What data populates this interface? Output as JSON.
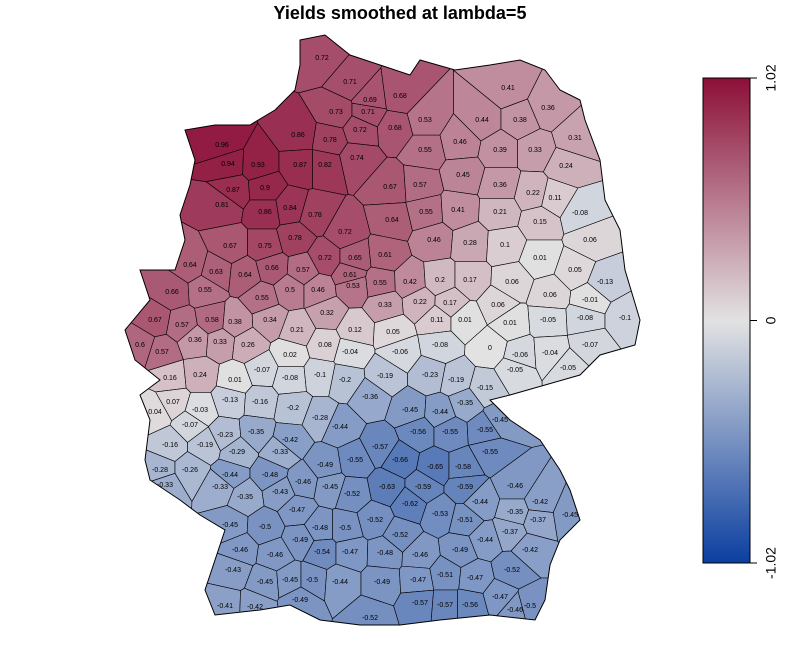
{
  "chart_data": {
    "type": "choropleth",
    "title": "Yields smoothed at lambda=5",
    "colors": {
      "low": "#0b3fa0",
      "mid": "#e2e2e2",
      "high": "#8c0f38"
    },
    "colorbar": {
      "lim": [
        -1.02,
        1.02
      ],
      "ticks": [
        -1.02,
        0,
        1.02
      ]
    },
    "regions": {
      "values": [
        0.72,
        0.71,
        0.69,
        0.68,
        0.73,
        0.71,
        0.68,
        0.72,
        0.96,
        0.94,
        0.93,
        0.87,
        0.82,
        0.86,
        0.78,
        0.74,
        0.67,
        0.57,
        0.55,
        0.53,
        0.46,
        0.44,
        0.38,
        0.41,
        0.36,
        0.31,
        0.33,
        0.39,
        0.24,
        0.45,
        0.36,
        0.22,
        0.11,
        -0.08,
        0.87,
        0.9,
        0.84,
        0.81,
        0.86,
        0.78,
        0.72,
        0.64,
        0.55,
        0.41,
        0.21,
        0.15,
        0.06,
        0.67,
        0.75,
        0.78,
        0.72,
        0.65,
        0.61,
        0.46,
        0.28,
        0.1,
        0.01,
        0.05,
        -0.13,
        0.64,
        0.63,
        0.64,
        0.66,
        0.57,
        0.61,
        0.55,
        0.42,
        0.2,
        0.17,
        0.06,
        0.06,
        -0.01,
        0.66,
        0.55,
        0.55,
        0.5,
        0.46,
        0.53,
        0.33,
        0.22,
        0.17,
        0.06,
        -0.05,
        -0.08,
        -0.1,
        0.67,
        0.57,
        0.58,
        0.38,
        0.34,
        0.21,
        0.32,
        0.12,
        0.05,
        0.11,
        0.01,
        0.01,
        -0.07,
        0.6,
        0.57,
        0.36,
        0.33,
        0.26,
        0.02,
        0.08,
        -0.04,
        -0.06,
        -0.08,
        0,
        -0.06,
        -0.04,
        -0.05,
        0.16,
        0.24,
        0.01,
        -0.07,
        -0.08,
        -0.1,
        -0.2,
        -0.19,
        -0.23,
        -0.19,
        -0.15,
        -0.05,
        0.04,
        0.07,
        -0.03,
        -0.13,
        -0.16,
        -0.2,
        -0.28,
        -0.36,
        -0.45,
        -0.44,
        -0.35,
        -0.45,
        -0.07,
        -0.23,
        -0.35,
        -0.42,
        -0.44,
        -0.57,
        -0.56,
        -0.55,
        -0.55,
        -0.16,
        -0.19,
        -0.29,
        -0.33,
        -0.49,
        -0.55,
        -0.66,
        -0.65,
        -0.58,
        -0.55,
        -0.28,
        -0.26,
        -0.44,
        -0.48,
        -0.46,
        -0.45,
        -0.63,
        -0.59,
        -0.59,
        -0.46,
        -0.33,
        -0.33,
        -0.35,
        -0.43,
        -0.52,
        -0.62,
        -0.53,
        -0.44,
        -0.35,
        -0.42,
        -0.45,
        -0.45,
        -0.5,
        -0.47,
        -0.48,
        -0.5,
        -0.52,
        -0.52,
        -0.51,
        -0.37,
        -0.37,
        -0.46,
        -0.46,
        -0.49,
        -0.54,
        -0.47,
        -0.48,
        -0.46,
        -0.49,
        -0.44,
        -0.42,
        -0.43,
        -0.45,
        -0.45,
        -0.5,
        -0.44,
        -0.49,
        -0.47,
        -0.51,
        -0.47,
        -0.52,
        -0.41,
        -0.42,
        -0.49,
        -0.52,
        -0.57,
        -0.57,
        -0.56,
        -0.47,
        -0.46,
        -0.5
      ]
    }
  }
}
